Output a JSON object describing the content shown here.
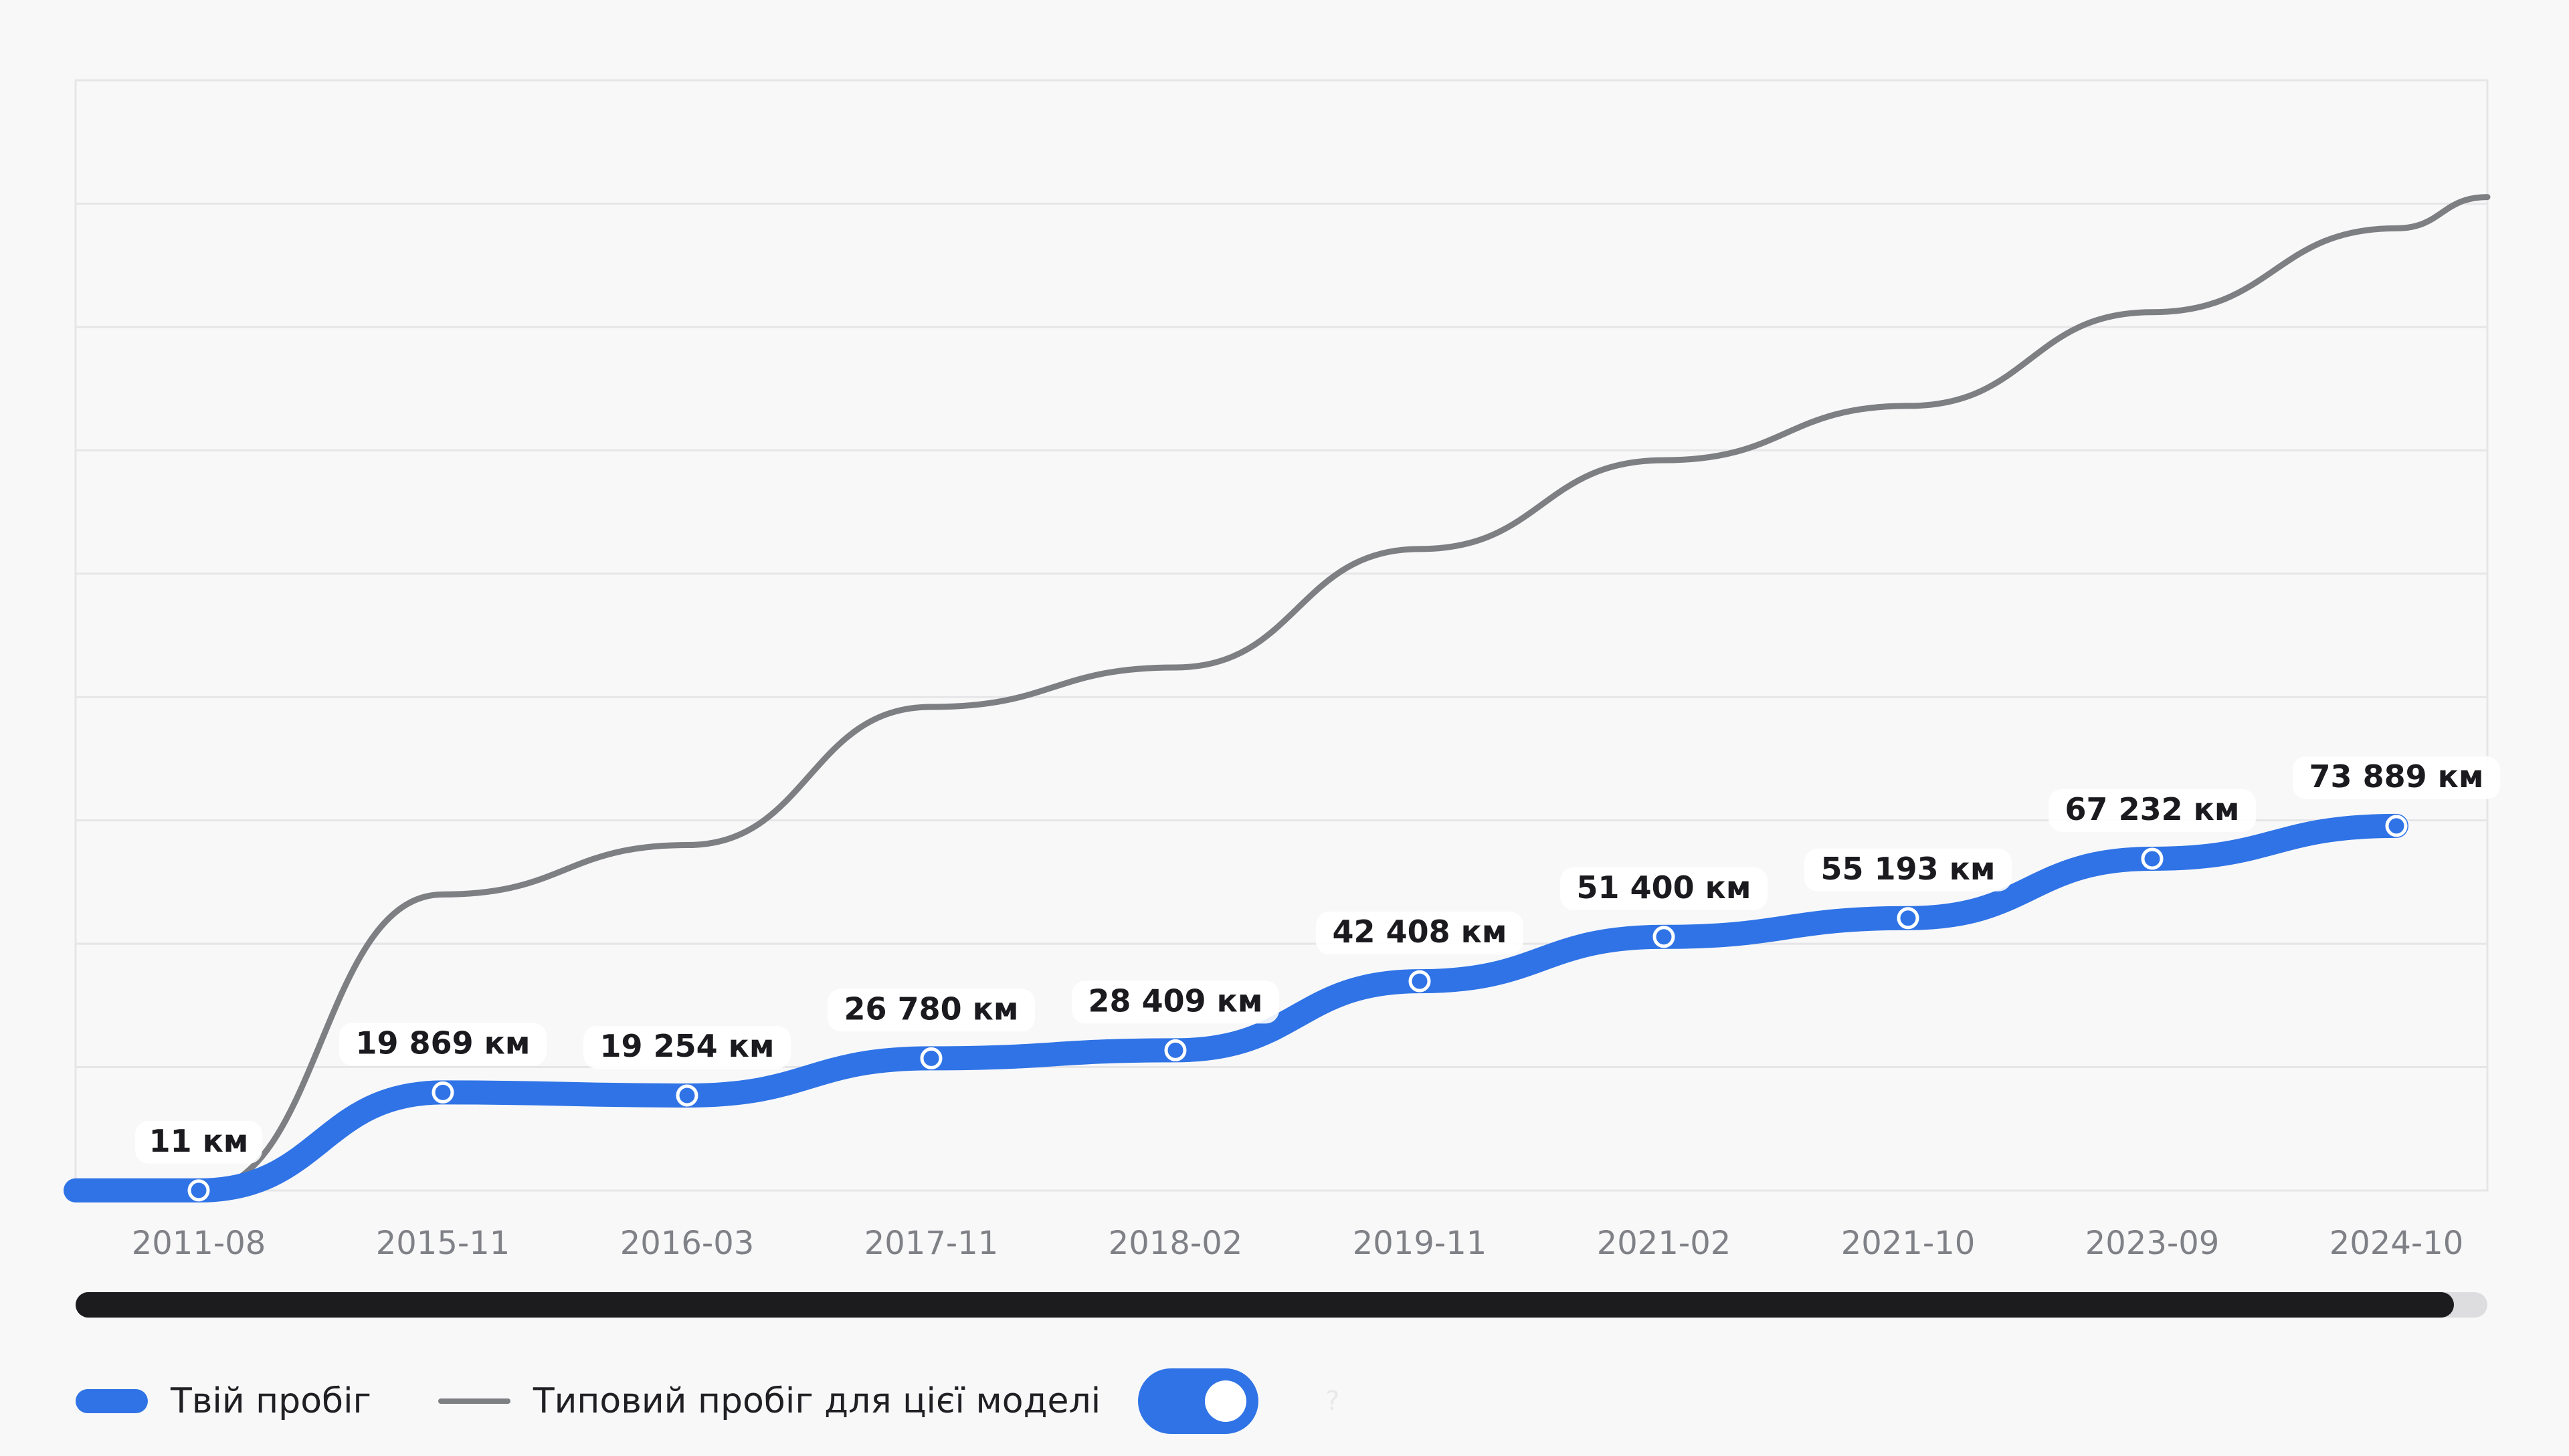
{
  "chart_data": {
    "type": "line",
    "categories": [
      "2011-08",
      "2015-11",
      "2016-03",
      "2017-11",
      "2018-02",
      "2019-11",
      "2021-02",
      "2021-10",
      "2023-09",
      "2024-10"
    ],
    "series": [
      {
        "name": "Твій пробіг",
        "values": [
          11,
          19869,
          19254,
          26780,
          28409,
          42408,
          51400,
          55193,
          67232,
          73889
        ],
        "labels": [
          "11 км",
          "19 869 км",
          "19 254 км",
          "26 780 км",
          "28 409 км",
          "42 408 км",
          "51 400 км",
          "55 193 км",
          "67 232 км",
          "73 889 км"
        ]
      },
      {
        "name": "Типовий пробіг для цієї моделі",
        "values": [
          0,
          60000,
          70000,
          98000,
          106000,
          130000,
          148000,
          159000,
          178000,
          195000
        ]
      }
    ],
    "ylim": [
      0,
      225000
    ],
    "grid": true,
    "legend_position": "bottom-left",
    "title": "",
    "xlabel": "",
    "ylabel": ""
  },
  "legend": {
    "own_label": "Твій пробіг",
    "typical_label": "Типовий пробіг для цієї моделі",
    "toggle_on": true
  },
  "colors": {
    "own_line": "#2f73e6",
    "typical_line": "#7e7f83",
    "grid": "#e6e6e8",
    "scroll_thumb": "#1c1c1e"
  }
}
